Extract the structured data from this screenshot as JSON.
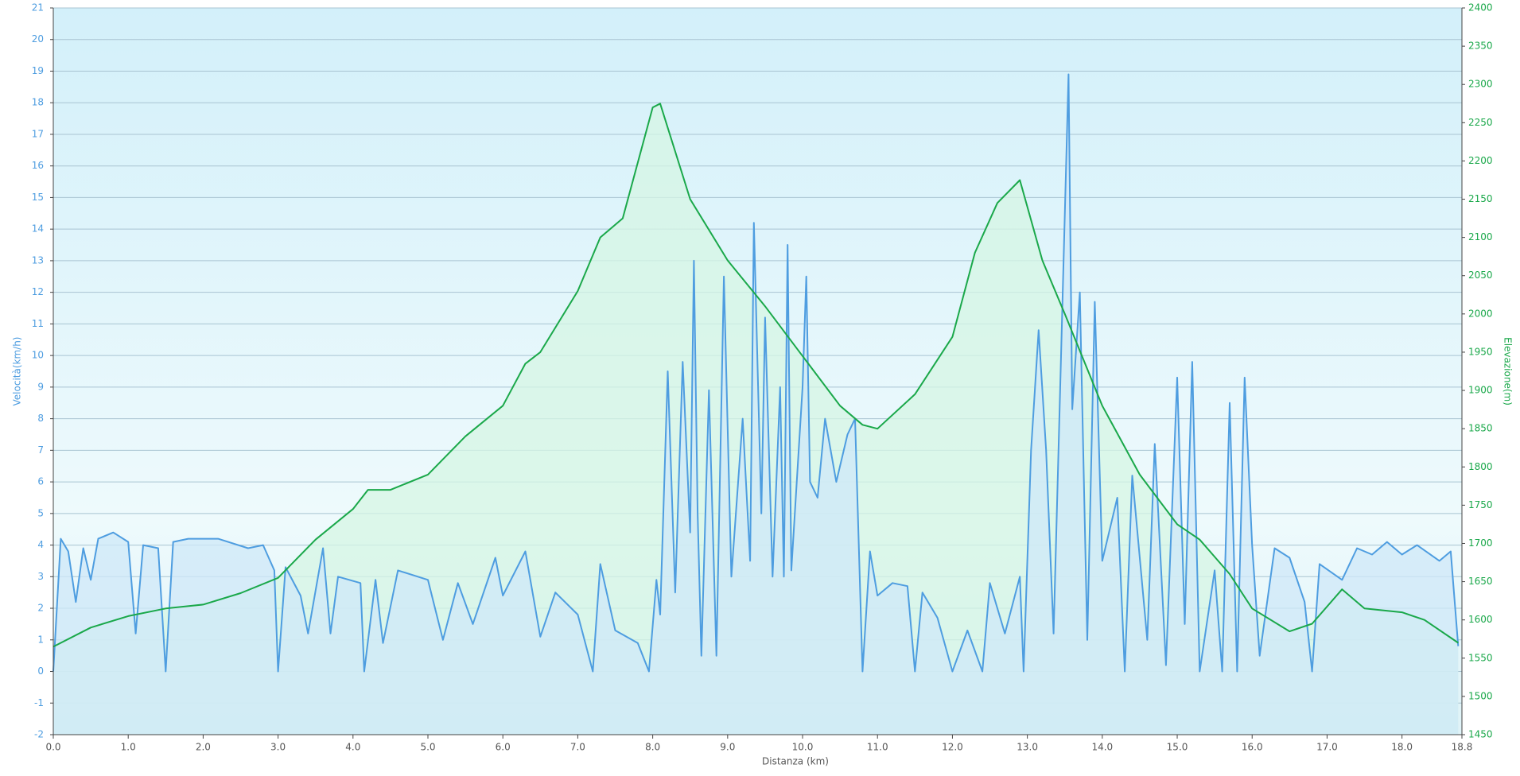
{
  "chart_data": {
    "type": "line",
    "xlabel": "Distanza  (km)",
    "ylabel": "Velocità(km/h)",
    "y2label": "Elevazione(m)",
    "xlim": [
      0,
      18.8
    ],
    "xticks": [
      {
        "value": 0,
        "label": "0.0"
      },
      {
        "value": 1,
        "label": "1.0"
      },
      {
        "value": 2,
        "label": "2.0"
      },
      {
        "value": 3,
        "label": "3.0"
      },
      {
        "value": 4,
        "label": "4.0"
      },
      {
        "value": 5,
        "label": "5.0"
      },
      {
        "value": 6,
        "label": "6.0"
      },
      {
        "value": 7,
        "label": "7.0"
      },
      {
        "value": 8,
        "label": "8.0"
      },
      {
        "value": 9,
        "label": "9.0"
      },
      {
        "value": 10,
        "label": "10.0"
      },
      {
        "value": 11,
        "label": "11.0"
      },
      {
        "value": 12,
        "label": "12.0"
      },
      {
        "value": 13,
        "label": "13.0"
      },
      {
        "value": 14,
        "label": "14.0"
      },
      {
        "value": 15,
        "label": "15.0"
      },
      {
        "value": 16,
        "label": "16.0"
      },
      {
        "value": 17,
        "label": "17.0"
      },
      {
        "value": 18,
        "label": "18.0"
      },
      18.8
    ],
    "ylim": [
      -2,
      21
    ],
    "yticks": [
      -2,
      -1,
      0,
      1,
      2,
      3,
      4,
      5,
      6,
      7,
      8,
      9,
      10,
      11,
      12,
      13,
      14,
      15,
      16,
      17,
      18,
      19,
      20,
      21
    ],
    "y2lim": [
      1450,
      2400
    ],
    "y2ticks": [
      1450,
      1500,
      1550,
      1600,
      1650,
      1700,
      1750,
      1800,
      1850,
      1900,
      1950,
      2000,
      2050,
      2100,
      2150,
      2200,
      2250,
      2300,
      2350,
      2400
    ],
    "grid": true,
    "series": [
      {
        "color": "#1aa84a",
        "fill": "#d6f5e4",
        "axis": "y2",
        "x": [
          0,
          0.5,
          1.0,
          1.5,
          2.0,
          2.5,
          3.0,
          3.5,
          4.0,
          4.2,
          4.5,
          5.0,
          5.5,
          6.0,
          6.3,
          6.5,
          7.0,
          7.3,
          7.6,
          8.0,
          8.1,
          8.5,
          9.0,
          9.5,
          10.0,
          10.5,
          10.8,
          11.0,
          11.5,
          12.0,
          12.3,
          12.6,
          12.9,
          13.2,
          13.5,
          14.0,
          14.5,
          15.0,
          15.3,
          15.7,
          16.0,
          16.5,
          16.8,
          17.2,
          17.5,
          18.0,
          18.3,
          18.75
        ],
        "values": [
          1565,
          1590,
          1605,
          1615,
          1620,
          1635,
          1655,
          1705,
          1745,
          1770,
          1770,
          1790,
          1840,
          1880,
          1935,
          1950,
          2030,
          2100,
          2125,
          2270,
          2275,
          2150,
          2070,
          2010,
          1945,
          1880,
          1855,
          1850,
          1895,
          1970,
          2080,
          2145,
          2175,
          2070,
          2000,
          1880,
          1790,
          1725,
          1705,
          1660,
          1615,
          1585,
          1595,
          1640,
          1615,
          1610,
          1600,
          1570
        ]
      },
      {
        "color": "#4e9de0",
        "fill": "#cfe8f8",
        "x": [
          0,
          0.1,
          0.2,
          0.3,
          0.4,
          0.5,
          0.6,
          0.8,
          1.0,
          1.1,
          1.2,
          1.4,
          1.5,
          1.6,
          1.8,
          2.2,
          2.6,
          2.8,
          2.95,
          3.0,
          3.1,
          3.3,
          3.4,
          3.6,
          3.7,
          3.8,
          4.1,
          4.15,
          4.3,
          4.4,
          4.6,
          5.0,
          5.2,
          5.4,
          5.6,
          5.9,
          6.0,
          6.3,
          6.5,
          6.7,
          7.0,
          7.2,
          7.3,
          7.5,
          7.8,
          7.95,
          8.05,
          8.1,
          8.2,
          8.3,
          8.4,
          8.5,
          8.55,
          8.6,
          8.65,
          8.75,
          8.85,
          8.95,
          9.05,
          9.2,
          9.3,
          9.35,
          9.45,
          9.5,
          9.6,
          9.7,
          9.75,
          9.8,
          9.85,
          10.0,
          10.05,
          10.1,
          10.2,
          10.3,
          10.45,
          10.6,
          10.7,
          10.8,
          10.9,
          11.0,
          11.2,
          11.4,
          11.5,
          11.6,
          11.8,
          12.0,
          12.2,
          12.4,
          12.5,
          12.7,
          12.9,
          12.95,
          13.05,
          13.15,
          13.25,
          13.35,
          13.45,
          13.55,
          13.6,
          13.7,
          13.8,
          13.9,
          14.0,
          14.2,
          14.3,
          14.4,
          14.6,
          14.7,
          14.85,
          15.0,
          15.1,
          15.2,
          15.3,
          15.5,
          15.6,
          15.7,
          15.8,
          15.9,
          16.0,
          16.1,
          16.3,
          16.5,
          16.7,
          16.8,
          16.9,
          17.2,
          17.4,
          17.6,
          17.8,
          18.0,
          18.2,
          18.5,
          18.65,
          18.75
        ],
        "values": [
          0,
          4.2,
          3.8,
          2.2,
          3.9,
          2.9,
          4.2,
          4.4,
          4.1,
          1.2,
          4.0,
          3.9,
          0,
          4.1,
          4.2,
          4.2,
          3.9,
          4.0,
          3.2,
          0,
          3.3,
          2.4,
          1.2,
          3.9,
          1.2,
          3.0,
          2.8,
          0,
          2.9,
          0.9,
          3.2,
          2.9,
          1.0,
          2.8,
          1.5,
          3.6,
          2.4,
          3.8,
          1.1,
          2.5,
          1.8,
          0,
          3.4,
          1.3,
          0.9,
          0,
          2.9,
          1.8,
          9.5,
          2.5,
          9.8,
          4.4,
          13,
          5,
          0.5,
          8.9,
          0.5,
          12.5,
          3,
          8,
          3.5,
          14.2,
          5,
          11.2,
          3,
          9,
          3,
          13.5,
          3.2,
          9,
          12.5,
          6,
          5.5,
          8,
          6,
          7.5,
          8,
          0,
          3.8,
          2.4,
          2.8,
          2.7,
          0,
          2.5,
          1.7,
          0,
          1.3,
          0,
          2.8,
          1.2,
          3,
          0,
          7,
          10.8,
          7,
          1.2,
          10,
          18.9,
          8.3,
          12,
          1,
          11.7,
          3.5,
          5.5,
          0,
          6.2,
          1,
          7.2,
          0.2,
          9.3,
          1.5,
          9.8,
          0,
          3.2,
          0,
          8.5,
          0,
          9.3,
          4,
          0.5,
          3.9,
          3.6,
          2.2,
          0,
          3.4,
          2.9,
          3.9,
          3.7,
          4.1,
          3.7,
          4.0,
          3.5,
          3.8,
          0.8
        ]
      }
    ]
  }
}
